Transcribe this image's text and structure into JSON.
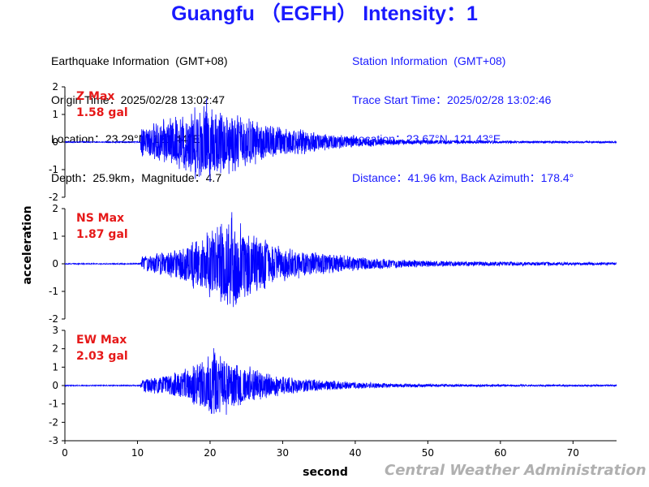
{
  "header": {
    "title": "Guangfu （EGFH） Intensity：1"
  },
  "earthquake_info": {
    "heading": "Earthquake Information  (GMT+08)",
    "origin_time": "Origin Time：2025/02/28 13:02:47",
    "location": "Location：23.29°N, 121.44°E",
    "depth_magnitude": "Depth：25.9km，Magnitude：4.7"
  },
  "station_info": {
    "heading": "Station Information  (GMT+08)",
    "trace_start": "Trace Start Time：2025/02/28 13:02:46",
    "location": "Location：23.67°N, 121.43°E",
    "distance": "Distance：41.96 km, Back Azimuth：178.4°"
  },
  "footer": {
    "credit": "Central Weather Administration"
  },
  "colors": {
    "title": "#1a1aff",
    "trace": "#0000ff",
    "max_label": "#e61919",
    "credit": "#b0b0b0"
  },
  "chart_data": {
    "type": "line",
    "xlabel": "second",
    "ylabel": "acceleration",
    "xlim": [
      0,
      76
    ],
    "x_ticks": [
      0,
      10,
      20,
      30,
      40,
      50,
      60,
      70
    ],
    "grid": false,
    "panels": [
      {
        "component": "Z",
        "max_label": "Z Max",
        "max_value": "1.58 gal",
        "peak": 1.58,
        "ylim": [
          -2,
          2
        ],
        "y_ticks": [
          2,
          1,
          0,
          -1,
          -2
        ],
        "series": [
          {
            "envelope": [
              [
                0,
                0.02
              ],
              [
                10.4,
                0.02
              ],
              [
                10.5,
                0.55
              ],
              [
                12,
                0.7
              ],
              [
                14,
                0.9
              ],
              [
                16,
                1.1
              ],
              [
                18,
                1.4
              ],
              [
                19.5,
                1.58
              ],
              [
                21,
                1.3
              ],
              [
                23,
                1.2
              ],
              [
                25,
                1.0
              ],
              [
                27,
                0.75
              ],
              [
                30,
                0.6
              ],
              [
                33,
                0.45
              ],
              [
                36,
                0.35
              ],
              [
                40,
                0.22
              ],
              [
                45,
                0.12
              ],
              [
                50,
                0.08
              ],
              [
                60,
                0.05
              ],
              [
                70,
                0.04
              ],
              [
                76,
                0.04
              ]
            ]
          }
        ]
      },
      {
        "component": "NS",
        "max_label": "NS Max",
        "max_value": "1.87 gal",
        "peak": 1.87,
        "ylim": [
          -2,
          2
        ],
        "y_ticks": [
          2,
          1,
          0,
          -1,
          -2
        ],
        "series": [
          {
            "envelope": [
              [
                0,
                0.02
              ],
              [
                10.4,
                0.02
              ],
              [
                10.6,
                0.3
              ],
              [
                12,
                0.35
              ],
              [
                14,
                0.5
              ],
              [
                16,
                0.7
              ],
              [
                18,
                0.95
              ],
              [
                20,
                1.3
              ],
              [
                21.5,
                1.6
              ],
              [
                23,
                1.87
              ],
              [
                24.5,
                1.5
              ],
              [
                26,
                1.2
              ],
              [
                28,
                0.9
              ],
              [
                30,
                0.7
              ],
              [
                33,
                0.5
              ],
              [
                36,
                0.4
              ],
              [
                40,
                0.28
              ],
              [
                45,
                0.18
              ],
              [
                50,
                0.12
              ],
              [
                60,
                0.08
              ],
              [
                70,
                0.06
              ],
              [
                76,
                0.05
              ]
            ]
          }
        ]
      },
      {
        "component": "EW",
        "max_label": "EW Max",
        "max_value": "2.03 gal",
        "peak": 2.03,
        "ylim": [
          -3,
          3
        ],
        "y_ticks": [
          3,
          2,
          1,
          0,
          -1,
          -2,
          -3
        ],
        "series": [
          {
            "envelope": [
              [
                0,
                0.03
              ],
              [
                10.4,
                0.03
              ],
              [
                10.6,
                0.35
              ],
              [
                12,
                0.45
              ],
              [
                14,
                0.6
              ],
              [
                16,
                0.85
              ],
              [
                18,
                1.2
              ],
              [
                19.5,
                1.6
              ],
              [
                20.5,
                2.03
              ],
              [
                22,
                1.7
              ],
              [
                24,
                1.4
              ],
              [
                26,
                1.0
              ],
              [
                28,
                0.75
              ],
              [
                30,
                0.55
              ],
              [
                33,
                0.4
              ],
              [
                36,
                0.3
              ],
              [
                40,
                0.2
              ],
              [
                45,
                0.12
              ],
              [
                50,
                0.09
              ],
              [
                60,
                0.06
              ],
              [
                70,
                0.05
              ],
              [
                76,
                0.05
              ]
            ]
          }
        ]
      }
    ]
  }
}
